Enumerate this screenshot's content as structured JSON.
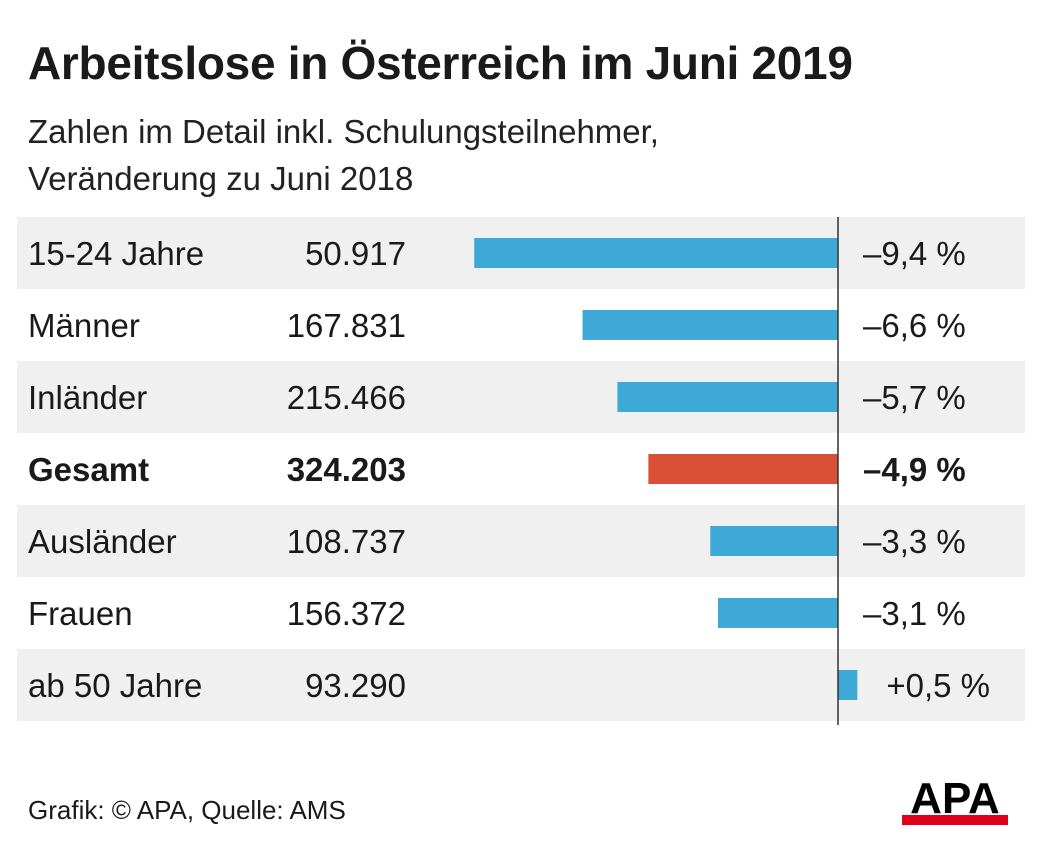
{
  "header": {
    "title": "Arbeitslose in Österreich im Juni 2019",
    "subtitle_line1": "Zahlen im Detail inkl. Schulungsteilnehmer,",
    "subtitle_line2": "Veränderung zu Juni 2018"
  },
  "colors": {
    "bar_default": "#3ea8d6",
    "bar_highlight": "#d94f38",
    "row_shade": "#f0f0f0",
    "logo_red": "#e2001a"
  },
  "chart_data": {
    "type": "bar",
    "orientation": "horizontal",
    "categories": [
      "15-24 Jahre",
      "Männer",
      "Inländer",
      "Gesamt",
      "Ausländer",
      "Frauen",
      "ab 50 Jahre"
    ],
    "counts": [
      "50.917",
      "167.831",
      "215.466",
      "324.203",
      "108.737",
      "156.372",
      "93.290"
    ],
    "values": [
      -9.4,
      -6.6,
      -5.7,
      -4.9,
      -3.3,
      -3.1,
      0.5
    ],
    "value_labels": [
      "–9,4 %",
      "–6,6 %",
      "–5,7 %",
      "–4,9 %",
      "–3,3 %",
      "–3,1 %",
      "+0,5 %"
    ],
    "highlight": "Gesamt",
    "unit": "%"
  },
  "footer": {
    "source": "Grafik: © APA, Quelle: AMS"
  },
  "logo": {
    "text": "APA"
  }
}
